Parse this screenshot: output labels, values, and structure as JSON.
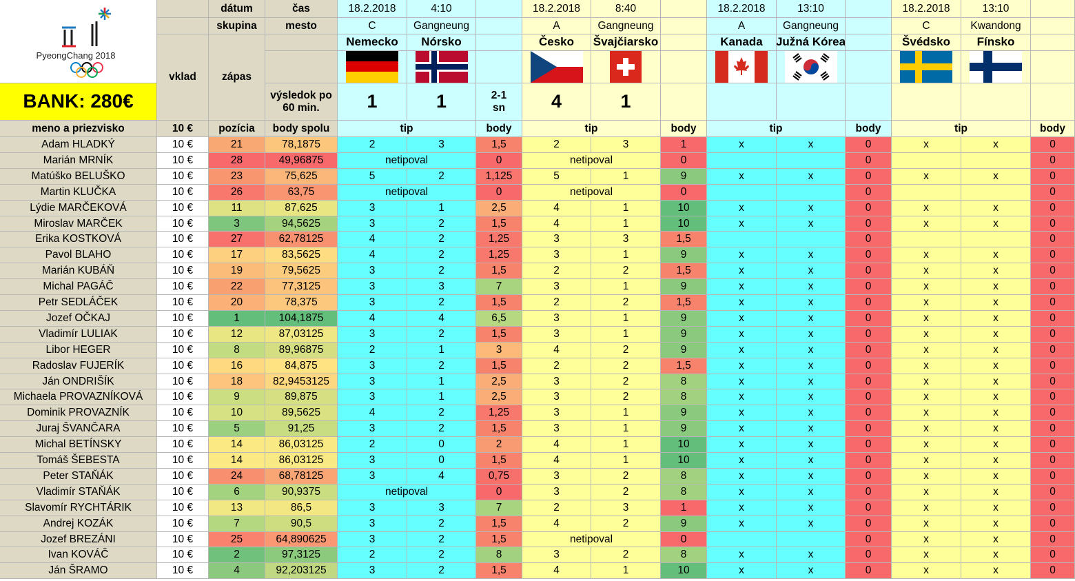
{
  "logo": {
    "text": "PyeongChang 2018"
  },
  "bank": "BANK: 280€",
  "header": {
    "datum_label": "dátum",
    "cas_label": "čas",
    "skupina_label": "skupina",
    "mesto_label": "mesto",
    "vklad_label": "vklad",
    "zapas_label": "zápas",
    "vysledok_label": "výsledok po 60 min.",
    "meno_label": "meno a priezvisko",
    "vklad_value": "10 €",
    "pozicia_label": "pozícia",
    "body_spolu_label": "body spolu",
    "tip_label": "tip",
    "body_label": "body"
  },
  "matches": [
    {
      "date": "18.2.2018",
      "time": "4:10",
      "group": "C",
      "city": "Gangneung",
      "team1": "Nemecko",
      "team2": "Nórsko",
      "flag1": "germany-flag",
      "flag2": "norway-flag",
      "score1": "1",
      "score2": "1",
      "extra": "2-1 sn"
    },
    {
      "date": "18.2.2018",
      "time": "8:40",
      "group": "A",
      "city": "Gangneung",
      "team1": "Česko",
      "team2": "Švajčiarsko",
      "flag1": "czech-flag",
      "flag2": "switzerland-flag",
      "score1": "4",
      "score2": "1",
      "extra": ""
    },
    {
      "date": "18.2.2018",
      "time": "13:10",
      "group": "A",
      "city": "Gangneung",
      "team1": "Kanada",
      "team2": "Južná Kórea",
      "flag1": "canada-flag",
      "flag2": "south-korea-flag",
      "score1": "",
      "score2": "",
      "extra": ""
    },
    {
      "date": "18.2.2018",
      "time": "13:10",
      "group": "C",
      "city": "Kwandong",
      "team1": "Švédsko",
      "team2": "Fínsko",
      "flag1": "sweden-flag",
      "flag2": "finland-flag",
      "score1": "",
      "score2": "",
      "extra": ""
    }
  ],
  "rows": [
    {
      "name": "Adam HLADKÝ",
      "vklad": "10 €",
      "pos": "21",
      "pos_color": "#f8a873",
      "total": "78,1875",
      "total_color": "#fcc77d",
      "m": [
        {
          "t1": "2",
          "t2": "3",
          "p": "1,5",
          "pc": "#f8836c"
        },
        {
          "t1": "2",
          "t2": "3",
          "p": "1",
          "pc": "#f8696b"
        },
        {
          "t1": "x",
          "t2": "x",
          "p": "0",
          "pc": "#f8696b"
        },
        {
          "t1": "x",
          "t2": "x",
          "p": "0",
          "pc": "#f8696b"
        }
      ]
    },
    {
      "name": "Marián MRNÍK",
      "vklad": "10 €",
      "pos": "28",
      "pos_color": "#f8696b",
      "total": "49,96875",
      "total_color": "#f8696b",
      "m": [
        {
          "np": "netipoval",
          "p": "0",
          "pc": "#f8696b"
        },
        {
          "np": "netipoval",
          "p": "0",
          "pc": "#f8696b"
        },
        {
          "t1": "",
          "t2": "",
          "p": "0",
          "pc": "#f8696b"
        },
        {
          "t1": "",
          "t2": "",
          "p": "0",
          "pc": "#f8696b"
        }
      ]
    },
    {
      "name": "Matúško BELUŠKO",
      "vklad": "10 €",
      "pos": "23",
      "pos_color": "#f8976f",
      "total": "75,625",
      "total_color": "#fbb779",
      "m": [
        {
          "t1": "5",
          "t2": "2",
          "p": "1,125",
          "pc": "#f8766d"
        },
        {
          "t1": "5",
          "t2": "1",
          "p": "9",
          "pc": "#8bca7e"
        },
        {
          "t1": "x",
          "t2": "x",
          "p": "0",
          "pc": "#f8696b"
        },
        {
          "t1": "x",
          "t2": "x",
          "p": "0",
          "pc": "#f8696b"
        }
      ]
    },
    {
      "name": "Martin KLUČKA",
      "vklad": "10 €",
      "pos": "26",
      "pos_color": "#f8786e",
      "total": "63,75",
      "total_color": "#f99571",
      "m": [
        {
          "np": "netipoval",
          "p": "0",
          "pc": "#f8696b"
        },
        {
          "np": "netipoval",
          "p": "0",
          "pc": "#f8696b"
        },
        {
          "t1": "",
          "t2": "",
          "p": "0",
          "pc": "#f8696b"
        },
        {
          "t1": "",
          "t2": "",
          "p": "0",
          "pc": "#f8696b"
        }
      ]
    },
    {
      "name": "Lýdie MARČEKOVÁ",
      "vklad": "10 €",
      "pos": "11",
      "pos_color": "#dee283",
      "total": "87,625",
      "total_color": "#e8e583",
      "m": [
        {
          "t1": "3",
          "t2": "1",
          "p": "2,5",
          "pc": "#fbad78"
        },
        {
          "t1": "4",
          "t2": "1",
          "p": "10",
          "pc": "#63be7b"
        },
        {
          "t1": "x",
          "t2": "x",
          "p": "0",
          "pc": "#f8696b"
        },
        {
          "t1": "x",
          "t2": "x",
          "p": "0",
          "pc": "#f8696b"
        }
      ]
    },
    {
      "name": "Miroslav MARČEK",
      "vklad": "10 €",
      "pos": "3",
      "pos_color": "#7ec57d",
      "total": "94,5625",
      "total_color": "#a5d27f",
      "m": [
        {
          "t1": "3",
          "t2": "2",
          "p": "1,5",
          "pc": "#f8836c"
        },
        {
          "t1": "4",
          "t2": "1",
          "p": "10",
          "pc": "#63be7b"
        },
        {
          "t1": "x",
          "t2": "x",
          "p": "0",
          "pc": "#f8696b"
        },
        {
          "t1": "x",
          "t2": "x",
          "p": "0",
          "pc": "#f8696b"
        }
      ]
    },
    {
      "name": "Erika KOSTKOVÁ",
      "vklad": "10 €",
      "pos": "27",
      "pos_color": "#f8716c",
      "total": "62,78125",
      "total_color": "#f89170",
      "m": [
        {
          "t1": "4",
          "t2": "2",
          "p": "1,25",
          "pc": "#f8786d"
        },
        {
          "t1": "3",
          "t2": "3",
          "p": "1,5",
          "pc": "#f8836c"
        },
        {
          "t1": "",
          "t2": "",
          "p": "0",
          "pc": "#f8696b"
        },
        {
          "t1": "",
          "t2": "",
          "p": "0",
          "pc": "#f8696b"
        }
      ]
    },
    {
      "name": "Pavol BLAHO",
      "vklad": "10 €",
      "pos": "17",
      "pos_color": "#fdd07f",
      "total": "83,5625",
      "total_color": "#fedc81",
      "m": [
        {
          "t1": "4",
          "t2": "2",
          "p": "1,25",
          "pc": "#f8786d"
        },
        {
          "t1": "3",
          "t2": "1",
          "p": "9",
          "pc": "#8bca7e"
        },
        {
          "t1": "x",
          "t2": "x",
          "p": "0",
          "pc": "#f8696b"
        },
        {
          "t1": "x",
          "t2": "x",
          "p": "0",
          "pc": "#f8696b"
        }
      ]
    },
    {
      "name": "Marián KUBÁŇ",
      "vklad": "10 €",
      "pos": "19",
      "pos_color": "#fbbc7a",
      "total": "79,5625",
      "total_color": "#fccc7e",
      "m": [
        {
          "t1": "3",
          "t2": "2",
          "p": "1,5",
          "pc": "#f8836c"
        },
        {
          "t1": "2",
          "t2": "2",
          "p": "1,5",
          "pc": "#f8836c"
        },
        {
          "t1": "x",
          "t2": "x",
          "p": "0",
          "pc": "#f8696b"
        },
        {
          "t1": "x",
          "t2": "x",
          "p": "0",
          "pc": "#f8696b"
        }
      ]
    },
    {
      "name": "Michal PAGÁČ",
      "vklad": "10 €",
      "pos": "22",
      "pos_color": "#f9a071",
      "total": "77,3125",
      "total_color": "#fbc37c",
      "m": [
        {
          "t1": "3",
          "t2": "3",
          "p": "7",
          "pc": "#a9d47f"
        },
        {
          "t1": "3",
          "t2": "1",
          "p": "9",
          "pc": "#8bca7e"
        },
        {
          "t1": "x",
          "t2": "x",
          "p": "0",
          "pc": "#f8696b"
        },
        {
          "t1": "x",
          "t2": "x",
          "p": "0",
          "pc": "#f8696b"
        }
      ]
    },
    {
      "name": "Petr SEDLÁČEK",
      "vklad": "10 €",
      "pos": "20",
      "pos_color": "#fab076",
      "total": "78,375",
      "total_color": "#fcc87d",
      "m": [
        {
          "t1": "3",
          "t2": "2",
          "p": "1,5",
          "pc": "#f8836c"
        },
        {
          "t1": "2",
          "t2": "2",
          "p": "1,5",
          "pc": "#f8836c"
        },
        {
          "t1": "x",
          "t2": "x",
          "p": "0",
          "pc": "#f8696b"
        },
        {
          "t1": "x",
          "t2": "x",
          "p": "0",
          "pc": "#f8696b"
        }
      ]
    },
    {
      "name": "Jozef OČKAJ",
      "vklad": "10 €",
      "pos": "1",
      "pos_color": "#63be7b",
      "total": "104,1875",
      "total_color": "#63be7b",
      "m": [
        {
          "t1": "4",
          "t2": "4",
          "p": "6,5",
          "pc": "#b5d880"
        },
        {
          "t1": "3",
          "t2": "1",
          "p": "9",
          "pc": "#8bca7e"
        },
        {
          "t1": "x",
          "t2": "x",
          "p": "0",
          "pc": "#f8696b"
        },
        {
          "t1": "x",
          "t2": "x",
          "p": "0",
          "pc": "#f8696b"
        }
      ]
    },
    {
      "name": "Vladimír LULIAK",
      "vklad": "10 €",
      "pos": "12",
      "pos_color": "#e8e583",
      "total": "87,03125",
      "total_color": "#eee783",
      "m": [
        {
          "t1": "3",
          "t2": "2",
          "p": "1,5",
          "pc": "#f8836c"
        },
        {
          "t1": "3",
          "t2": "1",
          "p": "9",
          "pc": "#8bca7e"
        },
        {
          "t1": "x",
          "t2": "x",
          "p": "0",
          "pc": "#f8696b"
        },
        {
          "t1": "x",
          "t2": "x",
          "p": "0",
          "pc": "#f8696b"
        }
      ]
    },
    {
      "name": "Libor HEGER",
      "vklad": "10 €",
      "pos": "8",
      "pos_color": "#c1dc81",
      "total": "89,96875",
      "total_color": "#d5df82",
      "m": [
        {
          "t1": "2",
          "t2": "1",
          "p": "3",
          "pc": "#fcb979"
        },
        {
          "t1": "4",
          "t2": "2",
          "p": "9",
          "pc": "#8bca7e"
        },
        {
          "t1": "x",
          "t2": "x",
          "p": "0",
          "pc": "#f8696b"
        },
        {
          "t1": "x",
          "t2": "x",
          "p": "0",
          "pc": "#f8696b"
        }
      ]
    },
    {
      "name": "Radoslav FUJERÍK",
      "vklad": "10 €",
      "pos": "16",
      "pos_color": "#fed980",
      "total": "84,875",
      "total_color": "#ffe383",
      "m": [
        {
          "t1": "3",
          "t2": "2",
          "p": "1,5",
          "pc": "#f8836c"
        },
        {
          "t1": "2",
          "t2": "2",
          "p": "1,5",
          "pc": "#f8836c"
        },
        {
          "t1": "x",
          "t2": "x",
          "p": "0",
          "pc": "#f8696b"
        },
        {
          "t1": "x",
          "t2": "x",
          "p": "0",
          "pc": "#f8696b"
        }
      ]
    },
    {
      "name": "Ján ONDRIŠÍK",
      "vklad": "10 €",
      "pos": "18",
      "pos_color": "#fcc47c",
      "total": "82,9453125",
      "total_color": "#fed880",
      "m": [
        {
          "t1": "3",
          "t2": "1",
          "p": "2,5",
          "pc": "#fbad78"
        },
        {
          "t1": "3",
          "t2": "2",
          "p": "8",
          "pc": "#a2d17f"
        },
        {
          "t1": "x",
          "t2": "x",
          "p": "0",
          "pc": "#f8696b"
        },
        {
          "t1": "x",
          "t2": "x",
          "p": "0",
          "pc": "#f8696b"
        }
      ]
    },
    {
      "name": "Michaela PROVAZNÍKOVÁ",
      "vklad": "10 €",
      "pos": "9",
      "pos_color": "#cbdf82",
      "total": "89,875",
      "total_color": "#d6e082",
      "m": [
        {
          "t1": "3",
          "t2": "1",
          "p": "2,5",
          "pc": "#fbad78"
        },
        {
          "t1": "3",
          "t2": "2",
          "p": "8",
          "pc": "#a2d17f"
        },
        {
          "t1": "x",
          "t2": "x",
          "p": "0",
          "pc": "#f8696b"
        },
        {
          "t1": "x",
          "t2": "x",
          "p": "0",
          "pc": "#f8696b"
        }
      ]
    },
    {
      "name": "Dominik PROVAZNÍK",
      "vklad": "10 €",
      "pos": "10",
      "pos_color": "#d5e182",
      "total": "89,5625",
      "total_color": "#d9e182",
      "m": [
        {
          "t1": "4",
          "t2": "2",
          "p": "1,25",
          "pc": "#f8786d"
        },
        {
          "t1": "3",
          "t2": "1",
          "p": "9",
          "pc": "#8bca7e"
        },
        {
          "t1": "x",
          "t2": "x",
          "p": "0",
          "pc": "#f8696b"
        },
        {
          "t1": "x",
          "t2": "x",
          "p": "0",
          "pc": "#f8696b"
        }
      ]
    },
    {
      "name": "Juraj ŠVANČARA",
      "vklad": "10 €",
      "pos": "5",
      "pos_color": "#9ad07f",
      "total": "91,25",
      "total_color": "#c8dc81",
      "m": [
        {
          "t1": "3",
          "t2": "2",
          "p": "1,5",
          "pc": "#f8836c"
        },
        {
          "t1": "3",
          "t2": "1",
          "p": "9",
          "pc": "#8bca7e"
        },
        {
          "t1": "x",
          "t2": "x",
          "p": "0",
          "pc": "#f8696b"
        },
        {
          "t1": "x",
          "t2": "x",
          "p": "0",
          "pc": "#f8696b"
        }
      ]
    },
    {
      "name": "Michal BETÍNSKY",
      "vklad": "10 €",
      "pos": "14",
      "pos_color": "#fbe983",
      "total": "86,03125",
      "total_color": "#f8e984",
      "m": [
        {
          "t1": "2",
          "t2": "0",
          "p": "2",
          "pc": "#f99b72"
        },
        {
          "t1": "4",
          "t2": "1",
          "p": "10",
          "pc": "#63be7b"
        },
        {
          "t1": "x",
          "t2": "x",
          "p": "0",
          "pc": "#f8696b"
        },
        {
          "t1": "x",
          "t2": "x",
          "p": "0",
          "pc": "#f8696b"
        }
      ]
    },
    {
      "name": "Tomáš ŠEBESTA",
      "vklad": "10 €",
      "pos": "14",
      "pos_color": "#fbe983",
      "total": "86,03125",
      "total_color": "#f8e984",
      "m": [
        {
          "t1": "3",
          "t2": "0",
          "p": "1,5",
          "pc": "#f8836c"
        },
        {
          "t1": "4",
          "t2": "1",
          "p": "10",
          "pc": "#63be7b"
        },
        {
          "t1": "x",
          "t2": "x",
          "p": "0",
          "pc": "#f8696b"
        },
        {
          "t1": "x",
          "t2": "x",
          "p": "0",
          "pc": "#f8696b"
        }
      ]
    },
    {
      "name": "Peter STAŇÁK",
      "vklad": "10 €",
      "pos": "24",
      "pos_color": "#f88f6e",
      "total": "68,78125",
      "total_color": "#faa674",
      "m": [
        {
          "t1": "3",
          "t2": "4",
          "p": "0,75",
          "pc": "#f8706c"
        },
        {
          "t1": "3",
          "t2": "2",
          "p": "8",
          "pc": "#a2d17f"
        },
        {
          "t1": "x",
          "t2": "x",
          "p": "0",
          "pc": "#f8696b"
        },
        {
          "t1": "x",
          "t2": "x",
          "p": "0",
          "pc": "#f8696b"
        }
      ]
    },
    {
      "name": "Vladimír STAŇÁK",
      "vklad": "10 €",
      "pos": "6",
      "pos_color": "#a4d380",
      "total": "90,9375",
      "total_color": "#cbdd81",
      "m": [
        {
          "np": "netipoval",
          "p": "0",
          "pc": "#f8696b"
        },
        {
          "t1": "3",
          "t2": "2",
          "p": "8",
          "pc": "#a2d17f"
        },
        {
          "t1": "x",
          "t2": "x",
          "p": "0",
          "pc": "#f8696b"
        },
        {
          "t1": "x",
          "t2": "x",
          "p": "0",
          "pc": "#f8696b"
        }
      ]
    },
    {
      "name": "Slavomír RYCHTÁRIK",
      "vklad": "10 €",
      "pos": "13",
      "pos_color": "#f1e884",
      "total": "86,5",
      "total_color": "#f3e784",
      "m": [
        {
          "t1": "3",
          "t2": "3",
          "p": "7",
          "pc": "#a9d47f"
        },
        {
          "t1": "2",
          "t2": "3",
          "p": "1",
          "pc": "#f8696b"
        },
        {
          "t1": "x",
          "t2": "x",
          "p": "0",
          "pc": "#f8696b"
        },
        {
          "t1": "x",
          "t2": "x",
          "p": "0",
          "pc": "#f8696b"
        }
      ]
    },
    {
      "name": "Andrej KOZÁK",
      "vklad": "10 €",
      "pos": "7",
      "pos_color": "#b3d880",
      "total": "90,5",
      "total_color": "#cfdd81",
      "m": [
        {
          "t1": "3",
          "t2": "2",
          "p": "1,5",
          "pc": "#f8836c"
        },
        {
          "t1": "4",
          "t2": "2",
          "p": "9",
          "pc": "#8bca7e"
        },
        {
          "t1": "x",
          "t2": "x",
          "p": "0",
          "pc": "#f8696b"
        },
        {
          "t1": "x",
          "t2": "x",
          "p": "0",
          "pc": "#f8696b"
        }
      ]
    },
    {
      "name": "Jozef BREZÁNI",
      "vklad": "10 €",
      "pos": "25",
      "pos_color": "#f8826d",
      "total": "64,890625",
      "total_color": "#f99872",
      "m": [
        {
          "t1": "3",
          "t2": "2",
          "p": "1,5",
          "pc": "#f8836c"
        },
        {
          "np": "netipoval",
          "p": "0",
          "pc": "#f8696b"
        },
        {
          "t1": "",
          "t2": "",
          "p": "0",
          "pc": "#f8696b"
        },
        {
          "t1": "x",
          "t2": "x",
          "p": "0",
          "pc": "#f8696b"
        }
      ]
    },
    {
      "name": "Ivan KOVÁČ",
      "vklad": "10 €",
      "pos": "2",
      "pos_color": "#70c17c",
      "total": "97,3125",
      "total_color": "#8cca7e",
      "m": [
        {
          "t1": "2",
          "t2": "2",
          "p": "8",
          "pc": "#a2d17f"
        },
        {
          "t1": "3",
          "t2": "2",
          "p": "8",
          "pc": "#a2d17f"
        },
        {
          "t1": "x",
          "t2": "x",
          "p": "0",
          "pc": "#f8696b"
        },
        {
          "t1": "x",
          "t2": "x",
          "p": "0",
          "pc": "#f8696b"
        }
      ]
    },
    {
      "name": "Ján ŠRAMO",
      "vklad": "10 €",
      "pos": "4",
      "pos_color": "#8bca7e",
      "total": "92,203125",
      "total_color": "#bfd881",
      "m": [
        {
          "t1": "3",
          "t2": "2",
          "p": "1,5",
          "pc": "#f8836c"
        },
        {
          "t1": "4",
          "t2": "1",
          "p": "10",
          "pc": "#63be7b"
        },
        {
          "t1": "x",
          "t2": "x",
          "p": "0",
          "pc": "#f8696b"
        },
        {
          "t1": "x",
          "t2": "x",
          "p": "0",
          "pc": "#f8696b"
        }
      ]
    }
  ],
  "colors": {
    "name_bg": "#ddd9c4",
    "cyan": "#66ffff",
    "yellow": "#ffff99",
    "light_cyan": "#ccffff",
    "light_yellow": "#ffffcc"
  }
}
